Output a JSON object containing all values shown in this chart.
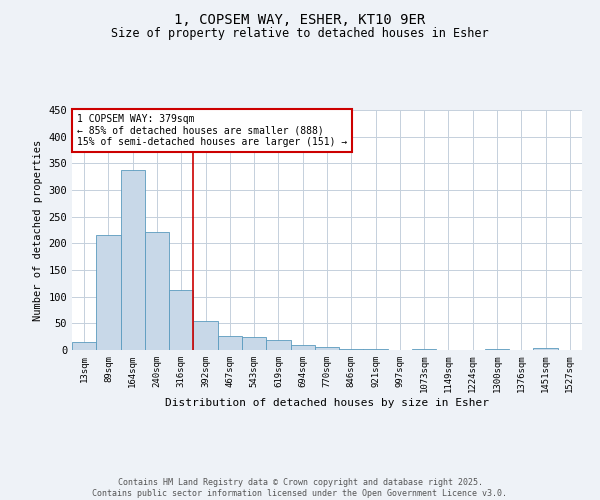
{
  "title": "1, COPSEM WAY, ESHER, KT10 9ER",
  "subtitle": "Size of property relative to detached houses in Esher",
  "xlabel": "Distribution of detached houses by size in Esher",
  "ylabel": "Number of detached properties",
  "categories": [
    "13sqm",
    "89sqm",
    "164sqm",
    "240sqm",
    "316sqm",
    "392sqm",
    "467sqm",
    "543sqm",
    "619sqm",
    "694sqm",
    "770sqm",
    "846sqm",
    "921sqm",
    "997sqm",
    "1073sqm",
    "1149sqm",
    "1224sqm",
    "1300sqm",
    "1376sqm",
    "1451sqm",
    "1527sqm"
  ],
  "values": [
    15,
    215,
    338,
    222,
    112,
    54,
    26,
    25,
    18,
    9,
    5,
    2,
    2,
    0,
    2,
    0,
    0,
    1,
    0,
    3,
    0
  ],
  "bar_color": "#c8d8e8",
  "bar_edge_color": "#5a9abe",
  "red_line_bin": 5,
  "annotation_line1": "1 COPSEM WAY: 379sqm",
  "annotation_line2": "← 85% of detached houses are smaller (888)",
  "annotation_line3": "15% of semi-detached houses are larger (151) →",
  "annotation_box_color": "#ffffff",
  "annotation_box_edge_color": "#cc0000",
  "red_line_color": "#cc0000",
  "ylim": [
    0,
    450
  ],
  "yticks": [
    0,
    50,
    100,
    150,
    200,
    250,
    300,
    350,
    400,
    450
  ],
  "footer_line1": "Contains HM Land Registry data © Crown copyright and database right 2025.",
  "footer_line2": "Contains public sector information licensed under the Open Government Licence v3.0.",
  "background_color": "#eef2f7",
  "plot_bg_color": "#ffffff",
  "grid_color": "#c5d0dc"
}
